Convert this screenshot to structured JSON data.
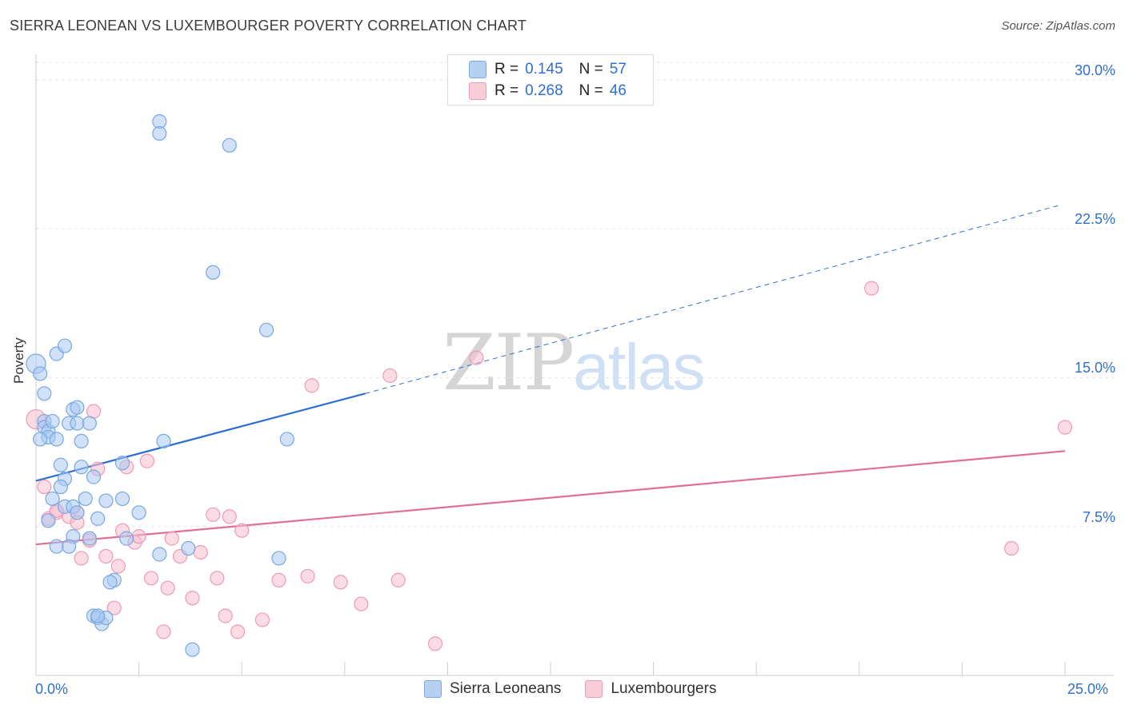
{
  "title": "SIERRA LEONEAN VS LUXEMBOURGER POVERTY CORRELATION CHART",
  "source": "Source: ZipAtlas.com",
  "watermark": {
    "zip": "ZIP",
    "atlas": "atlas"
  },
  "legend": {
    "series": [
      {
        "r_label": "R =",
        "r_value": "0.145",
        "n_label": "N =",
        "n_value": "57"
      },
      {
        "r_label": "R =",
        "r_value": "0.268",
        "n_label": "N =",
        "n_value": "46"
      }
    ],
    "bottom": [
      "Sierra Leoneans",
      "Luxembourgers"
    ]
  },
  "colors": {
    "blue_fill": "#a9c9f2",
    "blue_stroke": "#7aa7e0",
    "blue_line": "#2f6fd0",
    "pink_fill": "#f7bfd0",
    "pink_stroke": "#ee9ab4",
    "pink_line": "#e16e97",
    "grid": "#e3e3e3",
    "tick_label": "#2f6fd0"
  },
  "chart_data": {
    "type": "scatter",
    "title": "SIERRA LEONEAN VS LUXEMBOURGER POVERTY CORRELATION CHART",
    "xlabel": "",
    "ylabel": "Poverty",
    "xlim": [
      0,
      25.0
    ],
    "ylim": [
      0,
      31.0
    ],
    "x_tick_labels": [
      "0.0%",
      "25.0%"
    ],
    "y_ticks": [
      7.5,
      15.0,
      22.5,
      30.0
    ],
    "y_tick_labels": [
      "7.5%",
      "15.0%",
      "22.5%",
      "30.0%"
    ],
    "series": [
      {
        "name": "Sierra Leoneans",
        "R": 0.145,
        "N": 57,
        "points": [
          [
            0.0,
            15.7
          ],
          [
            0.1,
            15.2
          ],
          [
            0.2,
            14.2
          ],
          [
            0.2,
            12.8
          ],
          [
            0.2,
            12.5
          ],
          [
            0.3,
            12.3
          ],
          [
            0.3,
            12.0
          ],
          [
            0.1,
            11.9
          ],
          [
            0.5,
            11.9
          ],
          [
            0.5,
            16.2
          ],
          [
            0.7,
            16.6
          ],
          [
            0.4,
            12.8
          ],
          [
            0.8,
            12.7
          ],
          [
            0.9,
            13.4
          ],
          [
            1.0,
            12.7
          ],
          [
            1.0,
            13.5
          ],
          [
            1.3,
            12.7
          ],
          [
            1.1,
            11.8
          ],
          [
            0.6,
            10.6
          ],
          [
            1.1,
            10.5
          ],
          [
            1.4,
            10.0
          ],
          [
            0.7,
            9.9
          ],
          [
            0.6,
            9.5
          ],
          [
            0.4,
            8.9
          ],
          [
            1.2,
            8.9
          ],
          [
            1.7,
            8.8
          ],
          [
            2.1,
            8.9
          ],
          [
            0.7,
            8.5
          ],
          [
            0.9,
            8.5
          ],
          [
            1.0,
            8.2
          ],
          [
            1.5,
            7.9
          ],
          [
            0.3,
            7.8
          ],
          [
            0.9,
            7.0
          ],
          [
            1.3,
            6.9
          ],
          [
            2.2,
            6.9
          ],
          [
            0.5,
            6.5
          ],
          [
            0.8,
            6.5
          ],
          [
            2.5,
            8.2
          ],
          [
            2.1,
            10.7
          ],
          [
            3.1,
            11.8
          ],
          [
            3.0,
            6.1
          ],
          [
            3.7,
            6.4
          ],
          [
            5.9,
            5.9
          ],
          [
            1.9,
            4.8
          ],
          [
            1.8,
            4.7
          ],
          [
            1.4,
            3.0
          ],
          [
            1.5,
            2.9
          ],
          [
            1.6,
            2.6
          ],
          [
            1.7,
            2.9
          ],
          [
            3.0,
            27.9
          ],
          [
            3.0,
            27.3
          ],
          [
            4.7,
            26.7
          ],
          [
            4.3,
            20.3
          ],
          [
            5.6,
            17.4
          ],
          [
            6.1,
            11.9
          ],
          [
            3.8,
            1.3
          ],
          [
            1.5,
            3.0
          ]
        ],
        "trend": {
          "x": [
            0,
            8.0
          ],
          "y": [
            9.8,
            14.2
          ],
          "extended_x": [
            8.0,
            24.9
          ],
          "extended_y": [
            14.2,
            23.7
          ]
        }
      },
      {
        "name": "Luxembourgers",
        "R": 0.268,
        "N": 46,
        "points": [
          [
            0.0,
            12.9
          ],
          [
            0.2,
            9.5
          ],
          [
            0.3,
            7.9
          ],
          [
            0.5,
            8.2
          ],
          [
            0.8,
            8.0
          ],
          [
            1.0,
            8.2
          ],
          [
            1.0,
            7.7
          ],
          [
            1.1,
            5.9
          ],
          [
            1.3,
            6.8
          ],
          [
            1.4,
            13.3
          ],
          [
            1.5,
            10.4
          ],
          [
            1.7,
            6.0
          ],
          [
            1.9,
            3.4
          ],
          [
            2.0,
            5.5
          ],
          [
            2.1,
            7.3
          ],
          [
            2.2,
            10.5
          ],
          [
            2.4,
            6.7
          ],
          [
            2.5,
            7.0
          ],
          [
            2.7,
            10.8
          ],
          [
            2.8,
            4.9
          ],
          [
            3.1,
            2.2
          ],
          [
            3.2,
            4.4
          ],
          [
            3.3,
            6.9
          ],
          [
            3.5,
            6.0
          ],
          [
            3.8,
            3.9
          ],
          [
            4.0,
            6.2
          ],
          [
            4.3,
            8.1
          ],
          [
            4.4,
            4.9
          ],
          [
            4.6,
            3.0
          ],
          [
            4.7,
            8.0
          ],
          [
            4.9,
            2.2
          ],
          [
            5.0,
            7.3
          ],
          [
            5.5,
            2.8
          ],
          [
            5.9,
            4.8
          ],
          [
            6.6,
            5.0
          ],
          [
            6.7,
            14.6
          ],
          [
            7.4,
            4.7
          ],
          [
            7.9,
            3.6
          ],
          [
            8.6,
            15.1
          ],
          [
            8.8,
            4.8
          ],
          [
            9.7,
            1.6
          ],
          [
            10.7,
            16.0
          ],
          [
            20.3,
            19.5
          ],
          [
            23.7,
            6.4
          ],
          [
            25.0,
            12.5
          ],
          [
            0.5,
            8.3
          ]
        ],
        "trend": {
          "x": [
            0,
            25.0
          ],
          "y": [
            6.6,
            11.3
          ]
        }
      }
    ]
  }
}
